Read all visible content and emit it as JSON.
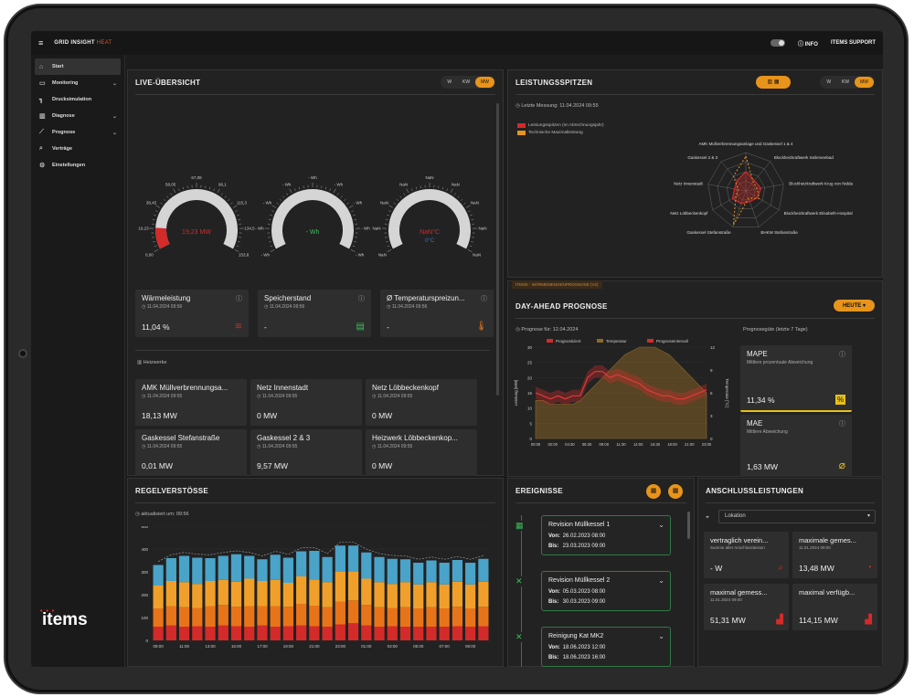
{
  "app": {
    "logo": "GRID INSIGHT",
    "logo_suffix": "HEAT",
    "info": "INFO",
    "support": "ITEMS SUPPORT",
    "brand": "items"
  },
  "nav": [
    {
      "label": "Start",
      "icon": "home-icon",
      "chev": ""
    },
    {
      "label": "Monitoring",
      "icon": "monitor-icon",
      "chev": "⌄"
    },
    {
      "label": "Drucksimulation",
      "icon": "pipe-icon",
      "chev": ""
    },
    {
      "label": "Diagnose",
      "icon": "bar-chart-icon",
      "chev": "⌄"
    },
    {
      "label": "Prognose",
      "icon": "line-chart-icon",
      "chev": "⌄"
    },
    {
      "label": "Verträge",
      "icon": "document-search-icon",
      "chev": ""
    },
    {
      "label": "Einstellungen",
      "icon": "gear-icon",
      "chev": ""
    }
  ],
  "live": {
    "title": "LIVE-ÜBERSICHT",
    "units": [
      "W",
      "KW",
      "MW"
    ],
    "gauges": [
      {
        "value": "19,23 MW",
        "ticks": [
          "0,00",
          "19,23",
          "38,45",
          "58,05",
          "67,08",
          "96,1",
          "115,3",
          "134,5",
          "153,8"
        ],
        "fill": 0.13,
        "color": "#d42a2a"
      },
      {
        "value": "- Wh",
        "ticks": [
          "- Wh",
          "- Wh",
          "- Wh",
          "- Wh",
          "- Wh",
          "- Wh",
          "- Wh",
          "- Wh",
          "- Wh"
        ],
        "fill": 0,
        "color": "#3bbd5a"
      },
      {
        "value": "NaN°C",
        "sub": "0°C",
        "ticks": [
          "NaN",
          "NaN",
          "NaN",
          "NaN",
          "NaN",
          "NaN",
          "NaN",
          "NaN",
          "NaN"
        ],
        "fill": 0,
        "color": "#d42a2a"
      }
    ],
    "cards": [
      {
        "title": "Wärmeleistung",
        "date": "11.04.2024 09:56",
        "value": "11,04 %",
        "icon": "heat-waves-icon"
      },
      {
        "title": "Speicherstand",
        "date": "11.04.2024 09:56",
        "value": "-",
        "icon": "storage-icon"
      },
      {
        "title": "Ø Temperaturspreizun...",
        "date": "11.04.2024 09:56",
        "value": "-",
        "icon": "thermometer-icon"
      }
    ],
    "plants_label": "Heizwerke",
    "plants": [
      {
        "title": "AMK Müllverbrennungsa...",
        "date": "11.04.2024 09:55",
        "value": "18,13 MW"
      },
      {
        "title": "Netz Innenstadt",
        "date": "11.04.2024 09:55",
        "value": "0 MW"
      },
      {
        "title": "Netz Löbbeckenkopf",
        "date": "11.04.2024 09:55",
        "value": "0 MW"
      },
      {
        "title": "Gaskessel Stefanstraße",
        "date": "11.04.2024 09:55",
        "value": "0,01 MW"
      },
      {
        "title": "Gaskessel 2 & 3",
        "date": "11.04.2024 09:55",
        "value": "9,57 MW"
      },
      {
        "title": "Heizwerk Löbbeckenkop...",
        "date": "11.04.2024 09:55",
        "value": "0 MW"
      }
    ]
  },
  "peaks": {
    "title": "LEISTUNGSSPITZEN",
    "units": [
      "W",
      "KW",
      "MW"
    ],
    "last": "Letzte Messung: 11.04.2024 09:55",
    "legend": [
      "Leistungsspitzen (im Abrechnungsjahr)",
      "Technische Maximalleistung"
    ],
    "colors": [
      "#d42a2a",
      "#e8941a"
    ],
    "labels": [
      "AMK Müllverbrennungsanlage und Gaskessel 1 & 4",
      "Blockheizkraftwerk Seilerseebad",
      "Blockheizkraftwerk Krug von Nidda",
      "Blockheizkraftwerk Elisabeth-Hospital",
      "BHKW Stefanstraße",
      "Gaskessel Stefanstraße",
      "Netz Löbbeckenkopf",
      "Netz Innenstadt",
      "Gaskessel 2 & 3"
    ],
    "series1": [
      0.5,
      0.35,
      0.4,
      0.35,
      0.3,
      0.35,
      0.4,
      0.3,
      0.35
    ],
    "series2": [
      0.9,
      0.3,
      0.3,
      0.4,
      0.2,
      0.95,
      0.3,
      0.2,
      0.5
    ]
  },
  "forecast": {
    "tag": "ITEMS - WÄRMEMENGENPROGNOSE (V2)",
    "title": "DAY-AHEAD PROGNOSE",
    "btn": "HEUTE",
    "date": "Prognose für: 12.04.2024",
    "quality": "Prognosegüte (letzte 7 Tage)",
    "legend": [
      "Prognostiziert",
      "Temperatur",
      "Prognoseintervall"
    ],
    "ylabel": "Leistung [MW]",
    "y2label": "Temperatur [°C]",
    "yticks": [
      "0",
      "5",
      "10",
      "15",
      "20",
      "25",
      "30"
    ],
    "y2ticks": [
      "0",
      "3",
      "6",
      "9",
      "12"
    ],
    "xticks": [
      "00:00",
      "02:00",
      "04:30",
      "06:30",
      "09:00",
      "11:30",
      "14:00",
      "16:30",
      "18:00",
      "21:00",
      "23:00"
    ],
    "load": [
      15,
      14,
      13,
      14,
      13,
      14,
      14,
      20,
      22,
      22,
      20,
      21,
      20,
      19,
      18,
      16,
      15,
      14,
      14,
      13,
      13,
      14,
      15,
      16
    ],
    "temp": [
      5,
      5,
      4.5,
      4.5,
      4.5,
      4.5,
      5,
      6,
      7,
      8,
      9,
      10,
      11,
      11.5,
      12,
      12,
      12,
      11.5,
      11,
      10,
      9,
      8,
      7,
      6
    ],
    "mape": {
      "title": "MAPE",
      "sub": "Mittlere prozentuale Abweichung",
      "value": "11,34 %"
    },
    "mae": {
      "title": "MAE",
      "sub": "Mittlere Abweichung",
      "value": "1,63 MW"
    }
  },
  "violations": {
    "title": "REGELVERSTÖSSE",
    "updated": "aktualisiert um: 09:56",
    "yticks": [
      "0",
      "100",
      "200",
      "300",
      "400",
      "500"
    ],
    "xticks": [
      "09:00",
      "11:00",
      "13:00",
      "15:00",
      "17:00",
      "19:00",
      "21:00",
      "23:00",
      "01:00",
      "03:00",
      "05:00",
      "07:00",
      "09:00"
    ],
    "bars": [
      [
        60,
        80,
        100,
        90
      ],
      [
        65,
        85,
        110,
        100
      ],
      [
        60,
        85,
        110,
        115
      ],
      [
        62,
        80,
        105,
        115
      ],
      [
        60,
        90,
        110,
        100
      ],
      [
        65,
        90,
        110,
        105
      ],
      [
        62,
        85,
        110,
        120
      ],
      [
        60,
        90,
        120,
        100
      ],
      [
        65,
        85,
        110,
        95
      ],
      [
        60,
        90,
        115,
        110
      ],
      [
        62,
        85,
        105,
        110
      ],
      [
        65,
        95,
        120,
        110
      ],
      [
        62,
        90,
        115,
        125
      ],
      [
        60,
        85,
        110,
        110
      ],
      [
        70,
        100,
        130,
        115
      ],
      [
        75,
        100,
        125,
        115
      ],
      [
        65,
        90,
        115,
        115
      ],
      [
        60,
        85,
        110,
        110
      ],
      [
        62,
        80,
        105,
        110
      ],
      [
        60,
        85,
        110,
        100
      ],
      [
        60,
        80,
        105,
        95
      ],
      [
        60,
        85,
        110,
        95
      ],
      [
        60,
        80,
        105,
        95
      ],
      [
        62,
        85,
        110,
        95
      ],
      [
        60,
        80,
        105,
        95
      ],
      [
        62,
        85,
        110,
        100
      ]
    ]
  },
  "events": {
    "title": "EREIGNISSE",
    "items": [
      {
        "title": "Revision Müllkessel 1",
        "from_label": "Von:",
        "from": "26.02.2023 08:00",
        "to_label": "Bis:",
        "to": "23.03.2023 09:00",
        "icon": "calendar-icon"
      },
      {
        "title": "Revision Müllkessel 2",
        "from_label": "Von:",
        "from": "05.03.2023 08:00",
        "to_label": "Bis:",
        "to": "30.03.2023 09:00",
        "icon": "wrench-icon"
      },
      {
        "title": "Reinigung Kat MK2",
        "from_label": "Von:",
        "from": "18.06.2023 12:00",
        "to_label": "Bis:",
        "to": "18.06.2023 16:00",
        "icon": "wrench-icon"
      }
    ]
  },
  "connections": {
    "title": "ANSCHLUSSLEISTUNGEN",
    "location": "Lokation",
    "cards": [
      {
        "title": "vertraglich verein...",
        "sub": "Summe aller Anschlussleistun",
        "value": "- W"
      },
      {
        "title": "maximale gemes...",
        "sub": "11.01.2024 09:00",
        "value": "13,48 MW"
      },
      {
        "title": "maximal gemess...",
        "sub": "11.01.2024 09:00",
        "value": "51,31 MW"
      },
      {
        "title": "maximal verfügb...",
        "sub": "",
        "value": "114,15 MW"
      }
    ]
  }
}
